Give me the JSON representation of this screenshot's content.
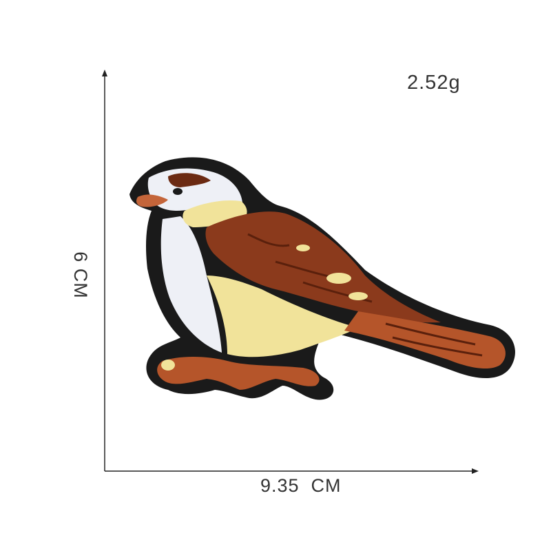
{
  "measurements": {
    "weight": "2.52g",
    "width": "9.35  CM",
    "height": "6 CM"
  },
  "colors": {
    "outline": "#1a1a1a",
    "brown": "#8b3a1c",
    "rust": "#b5552a",
    "cream": "#f1e39a",
    "white": "#eef0f6",
    "axis": "#222222"
  },
  "image": {
    "subject": "embroidered-bird-patch-icon"
  }
}
